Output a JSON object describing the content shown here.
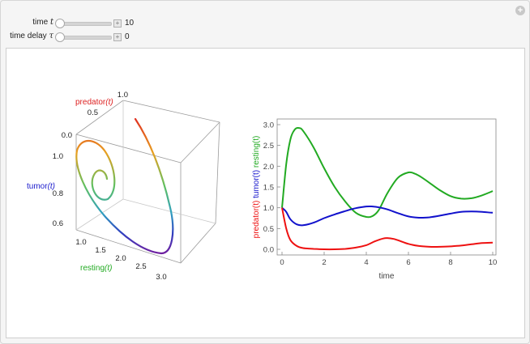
{
  "controls": {
    "time": {
      "label": "time",
      "symbol": "t",
      "value": "10",
      "fraction": 0.0
    },
    "delay": {
      "label": "time delay",
      "symbol": "τ",
      "value": "0",
      "fraction": 0.0
    }
  },
  "plot3d": {
    "axis_labels": {
      "x": {
        "name": "resting",
        "arg": "(t)",
        "color": "#22aa22"
      },
      "y": {
        "name": "tumor",
        "arg": "(t)",
        "color": "#1a1acc"
      },
      "z": {
        "name": "predator",
        "arg": "(t)",
        "color": "#dd2222"
      }
    },
    "x_ticks": [
      "1.0",
      "1.5",
      "2.0",
      "2.5",
      "3.0"
    ],
    "y_ticks": [
      "1.0",
      "0.8",
      "0.6"
    ],
    "z_ticks": [
      "0.0",
      "0.5",
      "1.0"
    ]
  },
  "chart_data": {
    "type": "line",
    "xlabel": "time",
    "ylabel_parts": [
      {
        "text": "predator(t)",
        "color": "#ee1111"
      },
      {
        "text": "tumor(t)",
        "color": "#1111cc"
      },
      {
        "text": "resting(t)",
        "color": "#22aa22"
      }
    ],
    "xlim": [
      0,
      10
    ],
    "ylim": [
      0,
      3
    ],
    "x_ticks": [
      "0",
      "2",
      "4",
      "6",
      "8",
      "10"
    ],
    "y_ticks": [
      "0.0",
      "0.5",
      "1.0",
      "1.5",
      "2.0",
      "2.5",
      "3.0"
    ],
    "series": [
      {
        "color": "#22aa22",
        "x": [
          0,
          0.2,
          0.4,
          0.6,
          0.8,
          1.0,
          1.5,
          2.0,
          2.5,
          3.0,
          3.5,
          4.0,
          4.3,
          4.6,
          5.0,
          5.5,
          6.0,
          6.3,
          6.6,
          7.0,
          7.5,
          8.0,
          8.5,
          9.0,
          9.5,
          10.0
        ],
        "y": [
          1.0,
          2.05,
          2.65,
          2.88,
          2.92,
          2.85,
          2.45,
          1.95,
          1.5,
          1.15,
          0.88,
          0.78,
          0.8,
          0.95,
          1.35,
          1.72,
          1.85,
          1.82,
          1.74,
          1.6,
          1.42,
          1.28,
          1.22,
          1.23,
          1.3,
          1.4
        ]
      },
      {
        "color": "#1111cc",
        "x": [
          0,
          0.2,
          0.4,
          0.7,
          1.0,
          1.5,
          2.0,
          2.5,
          3.0,
          3.5,
          4.0,
          4.3,
          4.6,
          5.0,
          5.5,
          6.0,
          6.5,
          7.0,
          7.5,
          8.0,
          8.5,
          9.0,
          9.5,
          10.0
        ],
        "y": [
          1.0,
          0.9,
          0.72,
          0.6,
          0.58,
          0.64,
          0.75,
          0.84,
          0.92,
          0.99,
          1.03,
          1.03,
          1.01,
          0.96,
          0.87,
          0.79,
          0.76,
          0.77,
          0.81,
          0.86,
          0.9,
          0.91,
          0.9,
          0.88
        ]
      },
      {
        "color": "#ee1111",
        "x": [
          0,
          0.2,
          0.4,
          0.7,
          1.0,
          1.5,
          2.0,
          2.5,
          3.0,
          3.5,
          4.0,
          4.4,
          4.8,
          5.0,
          5.3,
          5.6,
          6.0,
          6.5,
          7.0,
          7.5,
          8.0,
          8.5,
          9.0,
          9.5,
          10.0
        ],
        "y": [
          1.0,
          0.5,
          0.22,
          0.08,
          0.03,
          0.01,
          0.0,
          0.0,
          0.01,
          0.04,
          0.1,
          0.19,
          0.26,
          0.27,
          0.25,
          0.2,
          0.13,
          0.08,
          0.06,
          0.06,
          0.07,
          0.09,
          0.12,
          0.15,
          0.16
        ]
      }
    ]
  }
}
